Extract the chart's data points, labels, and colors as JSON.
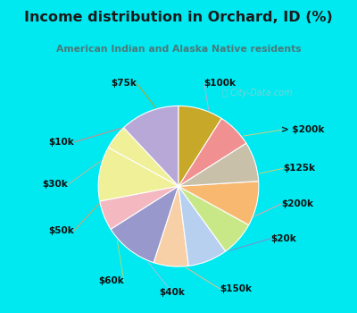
{
  "title": "Income distribution in Orchard, ID (%)",
  "subtitle": "American Indian and Alaska Native residents",
  "title_color": "#1a1a1a",
  "subtitle_color": "#4a7a7a",
  "bg_cyan": "#00e8f0",
  "bg_chart": "#d8f0e8",
  "labels": [
    "$100k",
    "> $200k",
    "$125k",
    "$200k",
    "$20k",
    "$150k",
    "$40k",
    "$60k",
    "$50k",
    "$30k",
    "$10k",
    "$75k"
  ],
  "values": [
    12,
    5,
    11,
    6,
    11,
    7,
    8,
    7,
    9,
    8,
    7,
    9
  ],
  "colors": [
    "#b8a8d8",
    "#f0f098",
    "#f0f098",
    "#f4b8c0",
    "#9898cc",
    "#f8d0a8",
    "#b8d0f0",
    "#c8e888",
    "#f8b870",
    "#c8c0a8",
    "#f09090",
    "#c8a828"
  ],
  "wedge_linewidth": 0.8,
  "wedge_edgecolor": "#ffffff",
  "label_fontsize": 7.5,
  "label_color": "#111111",
  "startangle": 90
}
